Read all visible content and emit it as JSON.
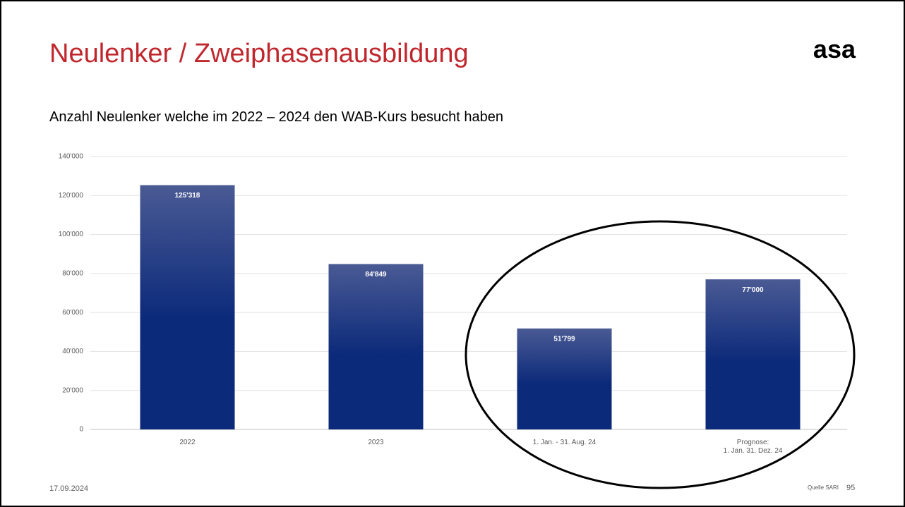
{
  "slide": {
    "title": "Neulenker / Zweiphasenausbildung",
    "logo": "asa",
    "date": "17.09.2024",
    "source": "Quelle SARI",
    "page": "95"
  },
  "chart_data": {
    "type": "bar",
    "title": "Anzahl Neulenker welche im 2022 – 2024 den WAB-Kurs besucht haben",
    "categories": [
      "2022",
      "2023",
      "1. Jan. - 31. Aug. 24",
      "Prognose:\n1. Jan. 31. Dez. 24"
    ],
    "values": [
      125318,
      84849,
      51799,
      77000
    ],
    "value_labels": [
      "125'318",
      "84'849",
      "51'799",
      "77'000"
    ],
    "color": "#0b2a7a",
    "ylim": [
      0,
      140000
    ],
    "yticks": [
      0,
      {
        "value": 20000,
        "label": "20'000"
      },
      {
        "value": 40000,
        "label": "40'000"
      },
      {
        "value": 60000,
        "label": "60'000"
      },
      {
        "value": 80000,
        "label": "80'000"
      },
      {
        "value": 100000,
        "label": "100'000"
      },
      {
        "value": 120000,
        "label": "120'000"
      },
      {
        "value": 140000,
        "label": "140'000"
      }
    ],
    "grid": true
  }
}
